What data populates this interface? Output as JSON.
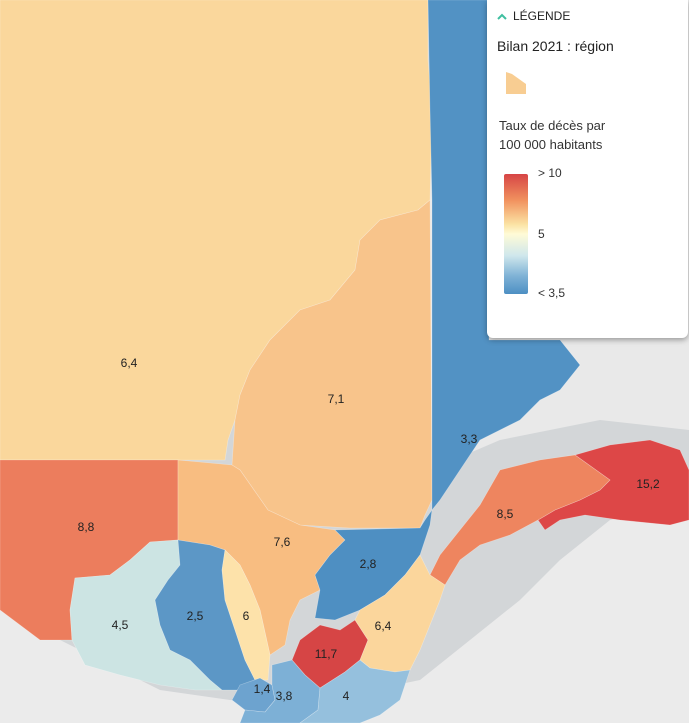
{
  "legend": {
    "header": "LÉGENDE",
    "title": "Bilan 2021 : région",
    "metric_line1": "Taux de décès par",
    "metric_line2": "100 000 habitants",
    "scale": {
      "high": "> 10",
      "mid": "5",
      "low": "< 3,5"
    },
    "swatch_color": "#f8cd92"
  },
  "colors": {
    "c64": "#fad79c",
    "c71": "#f8c48b",
    "c33": "#5292c4",
    "c152": "#dd4747",
    "c85": "#ee855f",
    "c88": "#ec7d5d",
    "c76": "#f8bd81",
    "c28": "#4e8fc2",
    "c45": "#cce4e3",
    "c25": "#5c97c6",
    "c6": "#fde2aa",
    "c117": "#d64545",
    "c64b": "#fbd69c",
    "c14": "#6da3cf",
    "c38": "#7db0d6",
    "c4": "#95c0dd"
  },
  "regions": {
    "nord_du_quebec": "6,4",
    "saguenay": "7,1",
    "cote_nord": "3,3",
    "gaspesie": "15,2",
    "bas_saint_laurent": "8,5",
    "abitibi": "8,8",
    "mauricie": "7,6",
    "capitale_nationale": "2,8",
    "outaouais": "4,5",
    "laurentides": "2,5",
    "lanaudiere": "6",
    "centre_du_quebec": "11,7",
    "chaudiere_appalaches": "6,4",
    "montreal": "1,4",
    "monteregie": "3,8",
    "estrie": "4"
  }
}
